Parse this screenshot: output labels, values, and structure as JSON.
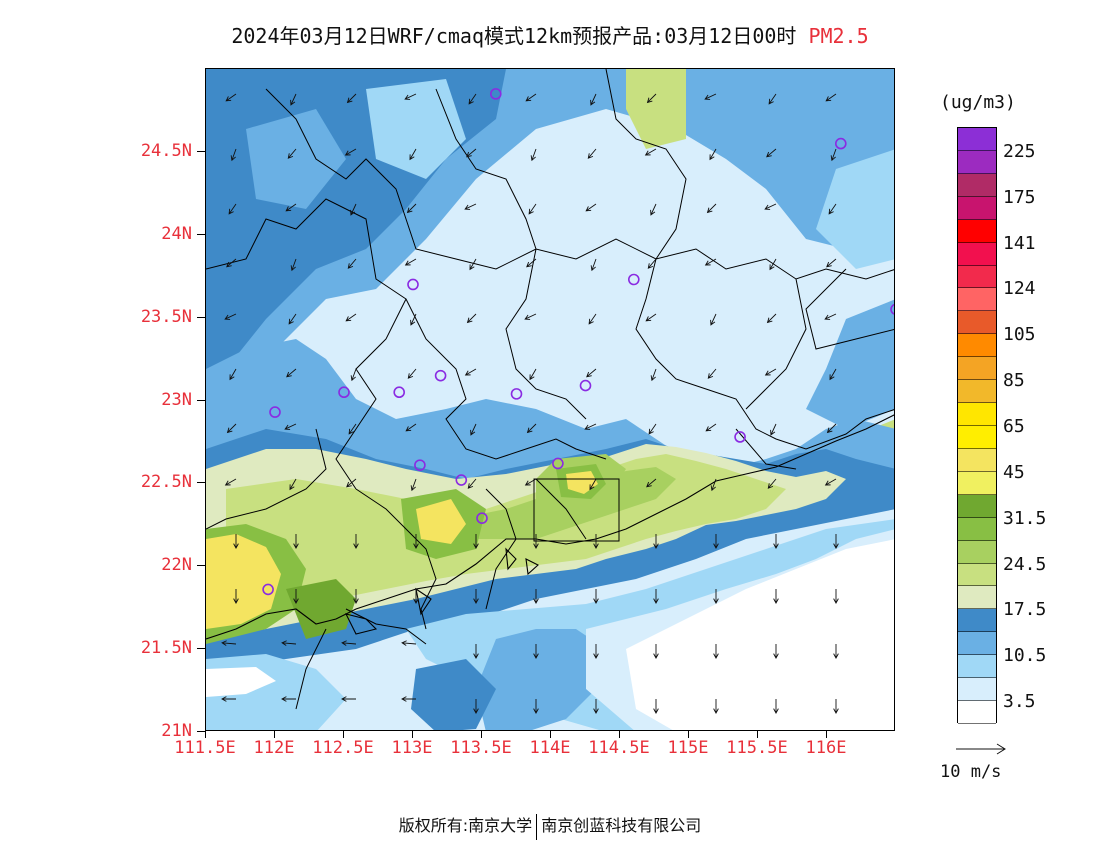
{
  "title": {
    "text": "2024年03月12日WRF/cmaq模式12km预报产品:03月12日00时",
    "pollutant": "PM2.5"
  },
  "map": {
    "lon_range": [
      111.5,
      116.5
    ],
    "lat_range": [
      21.0,
      25.0
    ],
    "y_ticks": [
      {
        "label": "24.5N",
        "lat": 24.5
      },
      {
        "label": "24N",
        "lat": 24.0
      },
      {
        "label": "23.5N",
        "lat": 23.5
      },
      {
        "label": "23N",
        "lat": 23.0
      },
      {
        "label": "22.5N",
        "lat": 22.5
      },
      {
        "label": "22N",
        "lat": 22.0
      },
      {
        "label": "21.5N",
        "lat": 21.5
      },
      {
        "label": "21N",
        "lat": 21.0
      }
    ],
    "x_ticks": [
      {
        "label": "111.5E",
        "lon": 111.5
      },
      {
        "label": "112E",
        "lon": 112.0
      },
      {
        "label": "112.5E",
        "lon": 112.5
      },
      {
        "label": "113E",
        "lon": 113.0
      },
      {
        "label": "113.5E",
        "lon": 113.5
      },
      {
        "label": "114E",
        "lon": 114.0
      },
      {
        "label": "114.5E",
        "lon": 114.5
      },
      {
        "label": "115E",
        "lon": 115.0
      },
      {
        "label": "115.5E",
        "lon": 115.5
      },
      {
        "label": "116E",
        "lon": 116.0
      }
    ],
    "stations": [
      [
        113.6,
        24.85
      ],
      [
        116.1,
        24.55
      ],
      [
        113.0,
        23.7
      ],
      [
        114.6,
        23.73
      ],
      [
        116.5,
        23.55
      ],
      [
        113.2,
        23.15
      ],
      [
        112.9,
        23.05
      ],
      [
        112.5,
        23.05
      ],
      [
        113.75,
        23.04
      ],
      [
        114.25,
        23.09
      ],
      [
        112.0,
        22.93
      ],
      [
        115.37,
        22.78
      ],
      [
        113.05,
        22.61
      ],
      [
        113.35,
        22.52
      ],
      [
        114.05,
        22.62
      ],
      [
        113.5,
        22.29
      ],
      [
        111.95,
        21.86
      ]
    ]
  },
  "colorbar": {
    "units": "(ug/m3)",
    "colors_top_to_bottom": [
      "#8c2fd6",
      "#9c2bc0",
      "#b02b66",
      "#c8146e",
      "#ff0000",
      "#f2104e",
      "#f22a4c",
      "#ff6464",
      "#e85a2a",
      "#ff8a00",
      "#f4a424",
      "#f2b82a",
      "#ffe600",
      "#ffee00",
      "#f4e460",
      "#f0f060",
      "#70a830",
      "#88bf44",
      "#a8d060",
      "#c8e080",
      "#dfeac0",
      "#3f8ac8",
      "#6ab0e4",
      "#a0d8f6",
      "#d8eefc",
      "#ffffff"
    ],
    "labels": [
      "225",
      "175",
      "141",
      "124",
      "105",
      "85",
      "65",
      "45",
      "31.5",
      "24.5",
      "17.5",
      "10.5",
      "3.5"
    ]
  },
  "wind_legend": {
    "label": "10 m/s"
  },
  "footer": {
    "left": "版权所有:南京大学",
    "right": "南京创蓝科技有限公司"
  }
}
